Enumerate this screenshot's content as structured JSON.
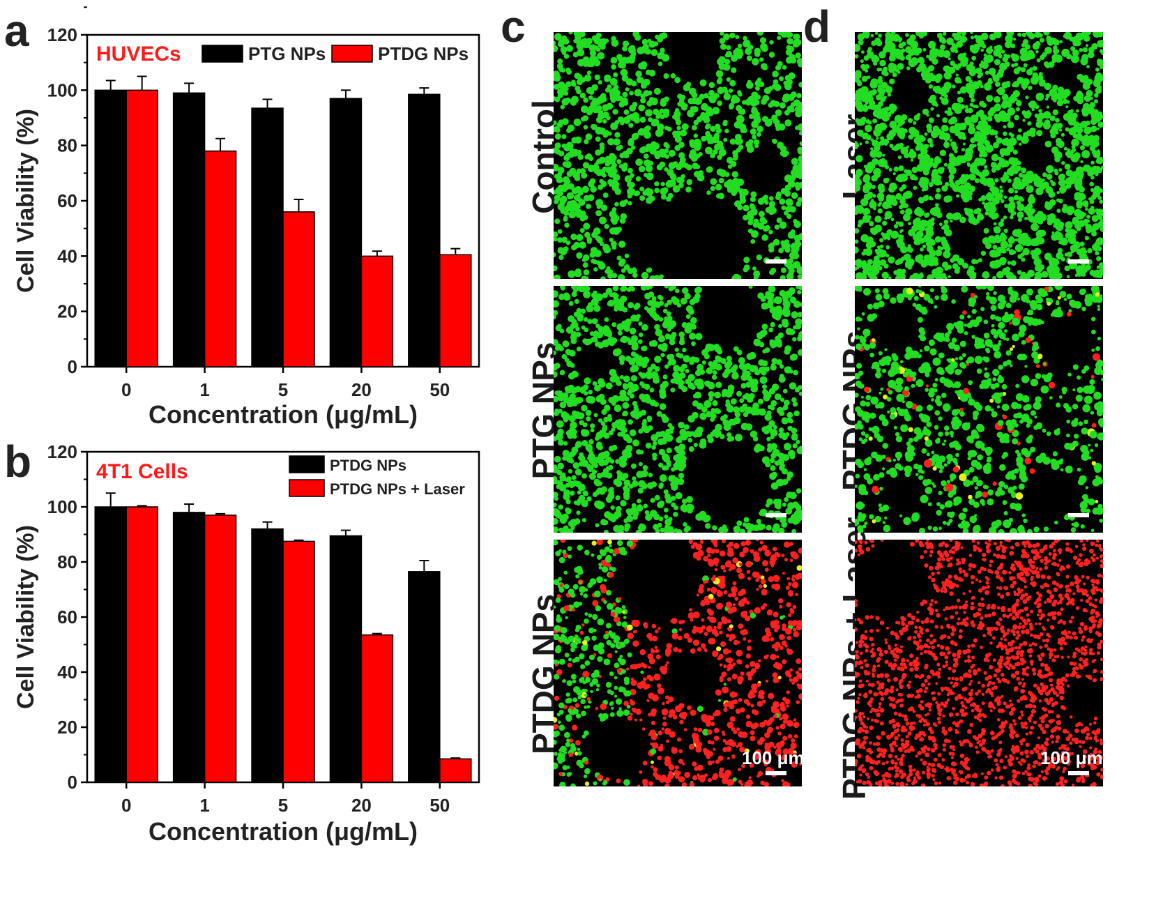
{
  "panels": {
    "a": "a",
    "b": "b",
    "c": "c",
    "d": "d"
  },
  "chart_data": [
    {
      "id": "a",
      "type": "bar",
      "title": "HUVECs",
      "xlabel": "Concentration (μg/mL)",
      "ylabel": "Cell Viability (%)",
      "categories": [
        "0",
        "1",
        "5",
        "20",
        "50"
      ],
      "ylim": [
        0,
        120
      ],
      "yticks": [
        0,
        20,
        40,
        60,
        80,
        100,
        120
      ],
      "legend_position": "top-right",
      "series": [
        {
          "name": "PTG NPs",
          "color": "#000000",
          "values": [
            100,
            99,
            93.5,
            97,
            98.5
          ],
          "errors": [
            3.5,
            3.5,
            3.2,
            3.0,
            2.3
          ]
        },
        {
          "name": "PTDG NPs",
          "color": "#ff0000",
          "values": [
            100,
            78,
            56,
            40,
            40.5
          ],
          "errors": [
            5,
            4.5,
            4.5,
            1.8,
            2.2
          ]
        }
      ]
    },
    {
      "id": "b",
      "type": "bar",
      "title": "4T1 Cells",
      "xlabel": "Concentration (μg/mL)",
      "ylabel": "Cell Viability (%)",
      "categories": [
        "0",
        "1",
        "5",
        "20",
        "50"
      ],
      "ylim": [
        0,
        120
      ],
      "yticks": [
        0,
        20,
        40,
        60,
        80,
        100,
        120
      ],
      "legend_position": "top-right",
      "series": [
        {
          "name": "PTDG NPs",
          "color": "#000000",
          "values": [
            100,
            98,
            92,
            89.5,
            76.5
          ],
          "errors": [
            5,
            3,
            2.5,
            2,
            4
          ]
        },
        {
          "name": "PTDG NPs + Laser",
          "color": "#ff0000",
          "values": [
            100,
            97,
            87.5,
            53.5,
            8.5
          ],
          "errors": [
            0.4,
            0.5,
            0.4,
            0.5,
            0.3
          ]
        }
      ]
    }
  ],
  "micrographs": {
    "c": [
      {
        "label": "Control"
      },
      {
        "label": "PTG NPs"
      },
      {
        "label": "PTDG NPs",
        "scale": "100 μm"
      }
    ],
    "d": [
      {
        "label": "Laser"
      },
      {
        "label": "PTDG NPs"
      },
      {
        "label": "PTDG NPs + Laser",
        "scale": "100 μm"
      }
    ]
  },
  "colors": {
    "live": "#22dd22",
    "dead": "#ff2020",
    "merge": "#e6f020"
  }
}
